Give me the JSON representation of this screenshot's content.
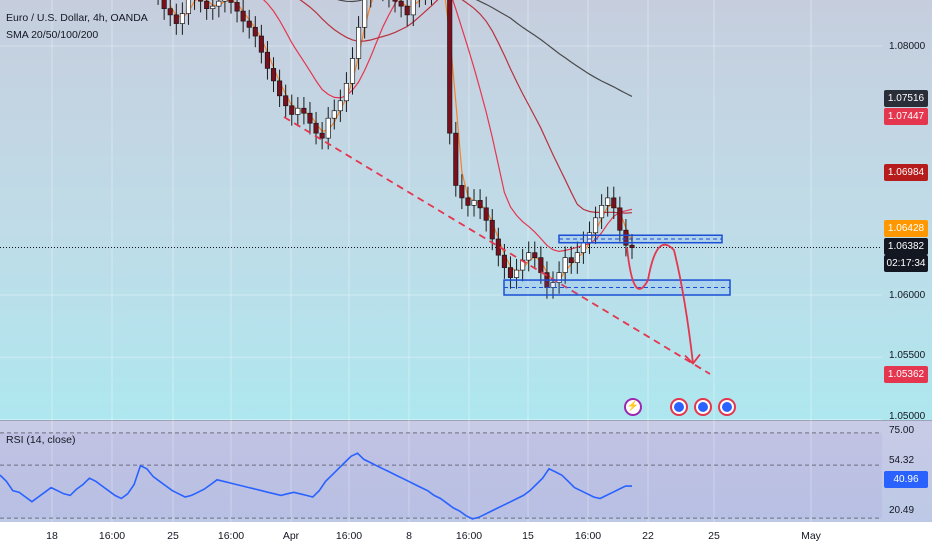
{
  "legend": {
    "title": "Euro / U.S. Dollar, 4h, OANDA",
    "indicator": "SMA 20/50/100/200",
    "rsi": "RSI (14, close)"
  },
  "price_axis_labels": [
    "1.08000",
    "1.06000",
    "1.05500",
    "1.05000"
  ],
  "price_tags": [
    {
      "value": "1.07516",
      "bg": "#2a2e39",
      "fg": "#ffffff"
    },
    {
      "value": "1.07447",
      "bg": "#e5364f",
      "fg": "#ffffff"
    },
    {
      "value": "1.06984",
      "bg": "#b71c1c",
      "fg": "#ffffff"
    },
    {
      "value": "1.06428",
      "bg": "#ff9800",
      "fg": "#ffffff"
    },
    {
      "value": "1.06382",
      "bg": "#131722",
      "fg": "#ffffff"
    },
    {
      "value": "02:17:34",
      "bg": "#131722",
      "fg": "#ffffff"
    },
    {
      "value": "1.05362",
      "bg": "#e5364f",
      "fg": "#ffffff"
    }
  ],
  "rsi_axis_labels": [
    "75.00",
    "54.32",
    "20.49"
  ],
  "rsi_tags": [
    {
      "value": "40.96",
      "bg": "#2962ff",
      "fg": "#ffffff"
    }
  ],
  "x_labels": [
    "18",
    "16:00",
    "25",
    "16:00",
    "Apr",
    "16:00",
    "8",
    "16:00",
    "15",
    "16:00",
    "22",
    "25",
    "May"
  ],
  "colors": {
    "bg_top": "#c5cfde",
    "bg_bottom": "#b0e8f0",
    "up": "#ffffff",
    "down": "#7a0f1e",
    "sma20": "#f5822a",
    "sma50": "#e5364f",
    "sma100": "#b8323d",
    "sma200": "#4a4a4a",
    "rsi": "#2962ff",
    "annotation": "#e5364f",
    "zone": "#1a4fd6"
  },
  "event_icons": [
    "bolt-icon",
    "flag-icon",
    "flag-icon",
    "flag-icon"
  ],
  "chart_data": {
    "type": "line",
    "title": "Euro / U.S. Dollar, 4h, OANDA",
    "ylim": [
      1.0495,
      1.0835
    ],
    "y_ticks": [
      1.08,
      1.06,
      1.055,
      1.05
    ],
    "last_price": 1.06382,
    "sma_last": {
      "sma20": 1.06428,
      "sma50": 1.06984,
      "sma100": 1.07447,
      "sma200": 1.07516
    },
    "close_series": [
      1.085,
      1.0842,
      1.083,
      1.0825,
      1.0818,
      1.0826,
      1.0838,
      1.0844,
      1.0836,
      1.083,
      1.0832,
      1.0836,
      1.084,
      1.0835,
      1.0828,
      1.082,
      1.0815,
      1.0808,
      1.0795,
      1.0782,
      1.0772,
      1.076,
      1.0752,
      1.0745,
      1.075,
      1.0746,
      1.0738,
      1.073,
      1.0726,
      1.0742,
      1.0748,
      1.0756,
      1.077,
      1.079,
      1.0815,
      1.084,
      1.0846,
      1.0852,
      1.0845,
      1.084,
      1.0836,
      1.0832,
      1.0825,
      1.084,
      1.0844,
      1.0842,
      1.0848,
      1.085,
      1.0847,
      1.073,
      1.0688,
      1.0678,
      1.0672,
      1.0676,
      1.067,
      1.066,
      1.0645,
      1.0632,
      1.0622,
      1.0614,
      1.062,
      1.0628,
      1.0634,
      1.063,
      1.0618,
      1.0606,
      1.061,
      1.0618,
      1.063,
      1.0626,
      1.0634,
      1.0642,
      1.065,
      1.0662,
      1.0672,
      1.0678,
      1.067,
      1.0652,
      1.064,
      1.0638
    ],
    "rsi": {
      "ylim": [
        18,
        80
      ],
      "levels": [
        75.0,
        54.32,
        20.49
      ],
      "last": 40.96,
      "values": [
        48,
        44,
        38,
        37,
        34,
        31,
        34,
        37,
        40,
        38,
        36,
        35,
        39,
        42,
        46,
        44,
        41,
        38,
        35,
        33,
        36,
        42,
        54,
        52,
        47,
        44,
        41,
        38,
        36,
        34,
        35,
        37,
        39,
        42,
        45,
        44,
        43,
        42,
        41,
        40,
        39,
        38,
        37,
        36,
        35,
        36,
        37,
        36,
        35,
        34,
        38,
        44,
        48,
        52,
        56,
        60,
        62,
        58,
        56,
        54,
        52,
        50,
        48,
        46,
        44,
        42,
        40,
        38,
        35,
        33,
        30,
        27,
        25,
        22,
        20,
        21,
        23,
        25,
        27,
        29,
        31,
        33,
        35,
        38,
        42,
        46,
        52,
        50,
        48,
        44,
        40,
        38,
        36,
        34,
        33,
        35,
        37,
        39,
        41,
        40.96
      ]
    },
    "annotations": {
      "trendline": [
        [
          1.0745,
          0
        ],
        [
          1.052,
          1
        ]
      ],
      "resistance_zone": [
        1.0642,
        1.0648
      ],
      "support_zone": [
        1.06,
        1.0612
      ],
      "projected_path": [
        1.0638,
        1.0612,
        1.064,
        1.0545
      ]
    }
  }
}
